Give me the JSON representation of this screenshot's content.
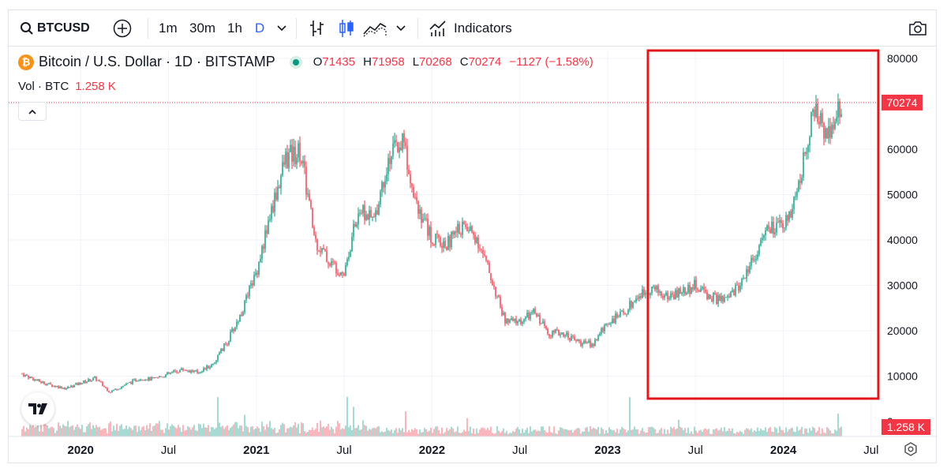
{
  "toolbar": {
    "symbol": "BTCUSD",
    "intervals": [
      "1m",
      "30m",
      "1h",
      "D"
    ],
    "active_interval": "D",
    "indicators_label": "Indicators"
  },
  "legend": {
    "title": "Bitcoin / U.S. Dollar · 1D · BITSTAMP",
    "open_label": "O",
    "open": "71435",
    "high_label": "H",
    "high": "71958",
    "low_label": "L",
    "low": "70268",
    "close_label": "C",
    "close": "70274",
    "change": "−1127 (−1.58%)",
    "vol_label": "Vol · BTC",
    "vol_value": "1.258 K"
  },
  "colors": {
    "up": "#089981",
    "down": "#f23645",
    "highlight_box": "#e3161b"
  },
  "chart_data": {
    "type": "line",
    "title": "Bitcoin / U.S. Dollar · 1D · BITSTAMP",
    "x_tick_labels": [
      "2020",
      "Jul",
      "2021",
      "Jul",
      "2022",
      "Jul",
      "2023",
      "Jul",
      "2024",
      "Jul"
    ],
    "y_tick_labels": [
      "0",
      "10000",
      "20000",
      "30000",
      "40000",
      "50000",
      "60000",
      "70000",
      "80000"
    ],
    "ylim": [
      0,
      80000
    ],
    "last_price_label": "70274",
    "last_volume_label": "1.258 K",
    "grid": true,
    "series": [
      {
        "x": [
          "2019-09",
          "2019-10",
          "2019-11",
          "2019-12",
          "2020-01",
          "2020-02",
          "2020-03",
          "2020-04",
          "2020-05",
          "2020-06",
          "2020-07",
          "2020-08",
          "2020-09",
          "2020-10",
          "2020-11",
          "2020-12",
          "2021-01",
          "2021-02",
          "2021-03",
          "2021-04",
          "2021-05",
          "2021-06",
          "2021-07",
          "2021-08",
          "2021-09",
          "2021-10",
          "2021-11",
          "2021-12",
          "2022-01",
          "2022-02",
          "2022-03",
          "2022-04",
          "2022-05",
          "2022-06",
          "2022-07",
          "2022-08",
          "2022-09",
          "2022-10",
          "2022-11",
          "2022-12",
          "2023-01",
          "2023-02",
          "2023-03",
          "2023-04",
          "2023-05",
          "2023-06",
          "2023-07",
          "2023-08",
          "2023-09",
          "2023-10",
          "2023-11",
          "2023-12",
          "2024-01",
          "2024-02",
          "2024-03",
          "2024-04",
          "2024-05"
        ],
        "values": [
          10500,
          9000,
          8000,
          7300,
          8500,
          9500,
          6500,
          8000,
          9500,
          9300,
          10500,
          11500,
          10800,
          12500,
          17500,
          24000,
          33000,
          46000,
          58000,
          60000,
          40000,
          35000,
          33000,
          47000,
          44000,
          58000,
          62000,
          48000,
          40000,
          39000,
          43000,
          41000,
          32000,
          22000,
          22000,
          24000,
          19500,
          19500,
          17500,
          17000,
          22000,
          23500,
          27500,
          29500,
          27500,
          28500,
          30000,
          27500,
          26500,
          30000,
          36500,
          42500,
          42500,
          51000,
          68000,
          64000,
          70274
        ]
      }
    ]
  }
}
